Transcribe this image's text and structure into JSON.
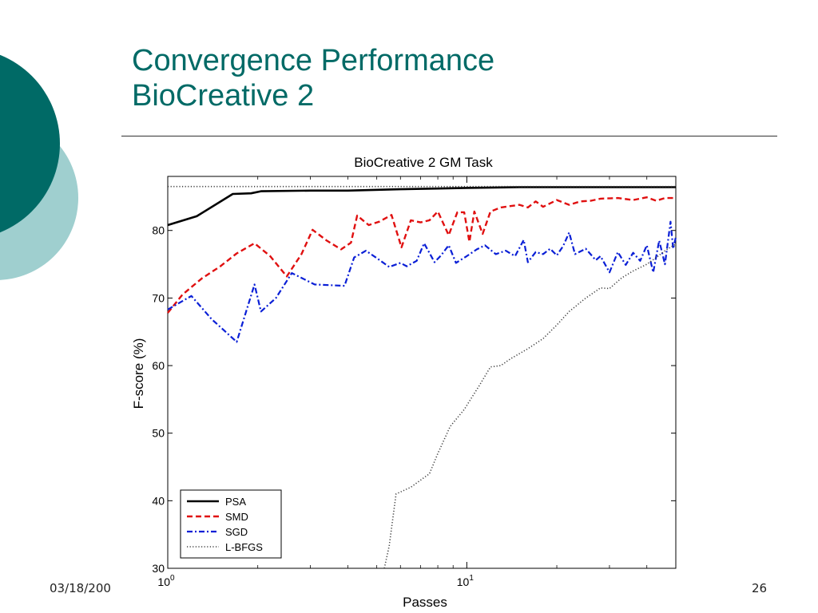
{
  "slide": {
    "title_line1": "Convergence Performance",
    "title_line2": "BioCreative 2",
    "footer_date": "03/18/200",
    "page_number": "26",
    "colors": {
      "title": "#006a66",
      "circle_dark": "#006a66",
      "circle_light": "#9fcfcf"
    }
  },
  "chart_data": {
    "type": "line",
    "title": "BioCreative 2 GM Task",
    "xlabel": "Passes",
    "ylabel": "F-score (%)",
    "x_scale": "log",
    "xlim": [
      1,
      50
    ],
    "ylim": [
      30,
      88
    ],
    "x_ticks": [
      {
        "value": 1,
        "label": "10",
        "exp": "0"
      },
      {
        "value": 10,
        "label": "10",
        "exp": "1"
      }
    ],
    "y_ticks": [
      30,
      40,
      50,
      60,
      70,
      80
    ],
    "legend_position": "bottom-left",
    "series": [
      {
        "name": "PSA",
        "color": "#000000",
        "dash": "solid",
        "points": [
          [
            1,
            80.8
          ],
          [
            1.25,
            82.1
          ],
          [
            1.65,
            85.4
          ],
          [
            1.9,
            85.5
          ],
          [
            2.05,
            85.8
          ],
          [
            3,
            85.9
          ],
          [
            4,
            85.9
          ],
          [
            6,
            86.1
          ],
          [
            8,
            86.2
          ],
          [
            10,
            86.3
          ],
          [
            15,
            86.4
          ],
          [
            20,
            86.4
          ],
          [
            30,
            86.4
          ],
          [
            50,
            86.4
          ]
        ]
      },
      {
        "name": "SMD",
        "color": "#e01010",
        "dash": "dashed",
        "points": [
          [
            1,
            67.8
          ],
          [
            1.12,
            70.5
          ],
          [
            1.3,
            72.9
          ],
          [
            1.5,
            74.7
          ],
          [
            1.7,
            76.6
          ],
          [
            1.95,
            78.1
          ],
          [
            2.2,
            76.2
          ],
          [
            2.5,
            73.2
          ],
          [
            2.8,
            76.5
          ],
          [
            3.05,
            80.1
          ],
          [
            3.4,
            78.5
          ],
          [
            3.8,
            77.2
          ],
          [
            4.1,
            78.2
          ],
          [
            4.3,
            82.2
          ],
          [
            4.7,
            80.8
          ],
          [
            5.1,
            81.3
          ],
          [
            5.6,
            82.3
          ],
          [
            6.05,
            77.5
          ],
          [
            6.5,
            81.5
          ],
          [
            7,
            81.2
          ],
          [
            7.5,
            81.5
          ],
          [
            8,
            82.8
          ],
          [
            8.7,
            79.3
          ],
          [
            9.3,
            82.7
          ],
          [
            9.8,
            82.7
          ],
          [
            10.2,
            78.3
          ],
          [
            10.6,
            82.8
          ],
          [
            11.3,
            79.5
          ],
          [
            12,
            82.8
          ],
          [
            13,
            83.4
          ],
          [
            15,
            83.8
          ],
          [
            16,
            83.4
          ],
          [
            17,
            84.3
          ],
          [
            18,
            83.5
          ],
          [
            20,
            84.5
          ],
          [
            22,
            83.8
          ],
          [
            24,
            84.3
          ],
          [
            26,
            84.4
          ],
          [
            28,
            84.7
          ],
          [
            32,
            84.8
          ],
          [
            36,
            84.5
          ],
          [
            40,
            84.9
          ],
          [
            43,
            84.4
          ],
          [
            46,
            84.8
          ],
          [
            50,
            84.8
          ]
        ]
      },
      {
        "name": "SGD",
        "color": "#0a1fd6",
        "dash": "dashdot",
        "points": [
          [
            1,
            68.3
          ],
          [
            1.2,
            70.3
          ],
          [
            1.4,
            66.9
          ],
          [
            1.7,
            63.5
          ],
          [
            1.95,
            72
          ],
          [
            2.05,
            68
          ],
          [
            2.3,
            70
          ],
          [
            2.6,
            73.7
          ],
          [
            3.1,
            72
          ],
          [
            3.5,
            71.9
          ],
          [
            3.9,
            71.8
          ],
          [
            4.2,
            76
          ],
          [
            4.6,
            77
          ],
          [
            5,
            75.9
          ],
          [
            5.5,
            74.6
          ],
          [
            6,
            75.2
          ],
          [
            6.3,
            74.7
          ],
          [
            6.8,
            75.5
          ],
          [
            7.2,
            78.1
          ],
          [
            7.8,
            75.3
          ],
          [
            8.2,
            76.3
          ],
          [
            8.7,
            77.8
          ],
          [
            9.2,
            75.2
          ],
          [
            10,
            76.2
          ],
          [
            10.8,
            77.2
          ],
          [
            11.5,
            77.8
          ],
          [
            12.5,
            76.5
          ],
          [
            13.5,
            77
          ],
          [
            14.5,
            76.2
          ],
          [
            15.5,
            78.6
          ],
          [
            16,
            75.3
          ],
          [
            17,
            76.8
          ],
          [
            18,
            76.5
          ],
          [
            19,
            77.3
          ],
          [
            20,
            76.3
          ],
          [
            21,
            77.7
          ],
          [
            22,
            79.7
          ],
          [
            23,
            76.5
          ],
          [
            25,
            77.3
          ],
          [
            27,
            75.6
          ],
          [
            28,
            76.2
          ],
          [
            30,
            73.8
          ],
          [
            32,
            76.8
          ],
          [
            34,
            74.9
          ],
          [
            36,
            76.7
          ],
          [
            38,
            75.5
          ],
          [
            40,
            77.8
          ],
          [
            42,
            73.8
          ],
          [
            44,
            78.5
          ],
          [
            46,
            75
          ],
          [
            48,
            81.3
          ],
          [
            49,
            77.3
          ],
          [
            50,
            79
          ]
        ]
      },
      {
        "name": "L-BFGS",
        "color": "#404040",
        "dash": "dotted",
        "points": [
          [
            5.3,
            30
          ],
          [
            5.5,
            33.3
          ],
          [
            5.8,
            41
          ],
          [
            6.5,
            42
          ],
          [
            7.5,
            44
          ],
          [
            8,
            47
          ],
          [
            8.8,
            51
          ],
          [
            9.8,
            53.5
          ],
          [
            11,
            57
          ],
          [
            12,
            59.8
          ],
          [
            13,
            60
          ],
          [
            14,
            61
          ],
          [
            16,
            62.5
          ],
          [
            18,
            64
          ],
          [
            20,
            66
          ],
          [
            22,
            68
          ],
          [
            25,
            70
          ],
          [
            28,
            71.5
          ],
          [
            30,
            71.4
          ],
          [
            33,
            73
          ],
          [
            36,
            74
          ],
          [
            40,
            75
          ],
          [
            43,
            76
          ],
          [
            46,
            77
          ],
          [
            50,
            78
          ]
        ]
      },
      {
        "name": "",
        "color": "#404040",
        "dash": "dotted",
        "points": [
          [
            1,
            86.5
          ],
          [
            50,
            86.5
          ]
        ]
      }
    ]
  }
}
